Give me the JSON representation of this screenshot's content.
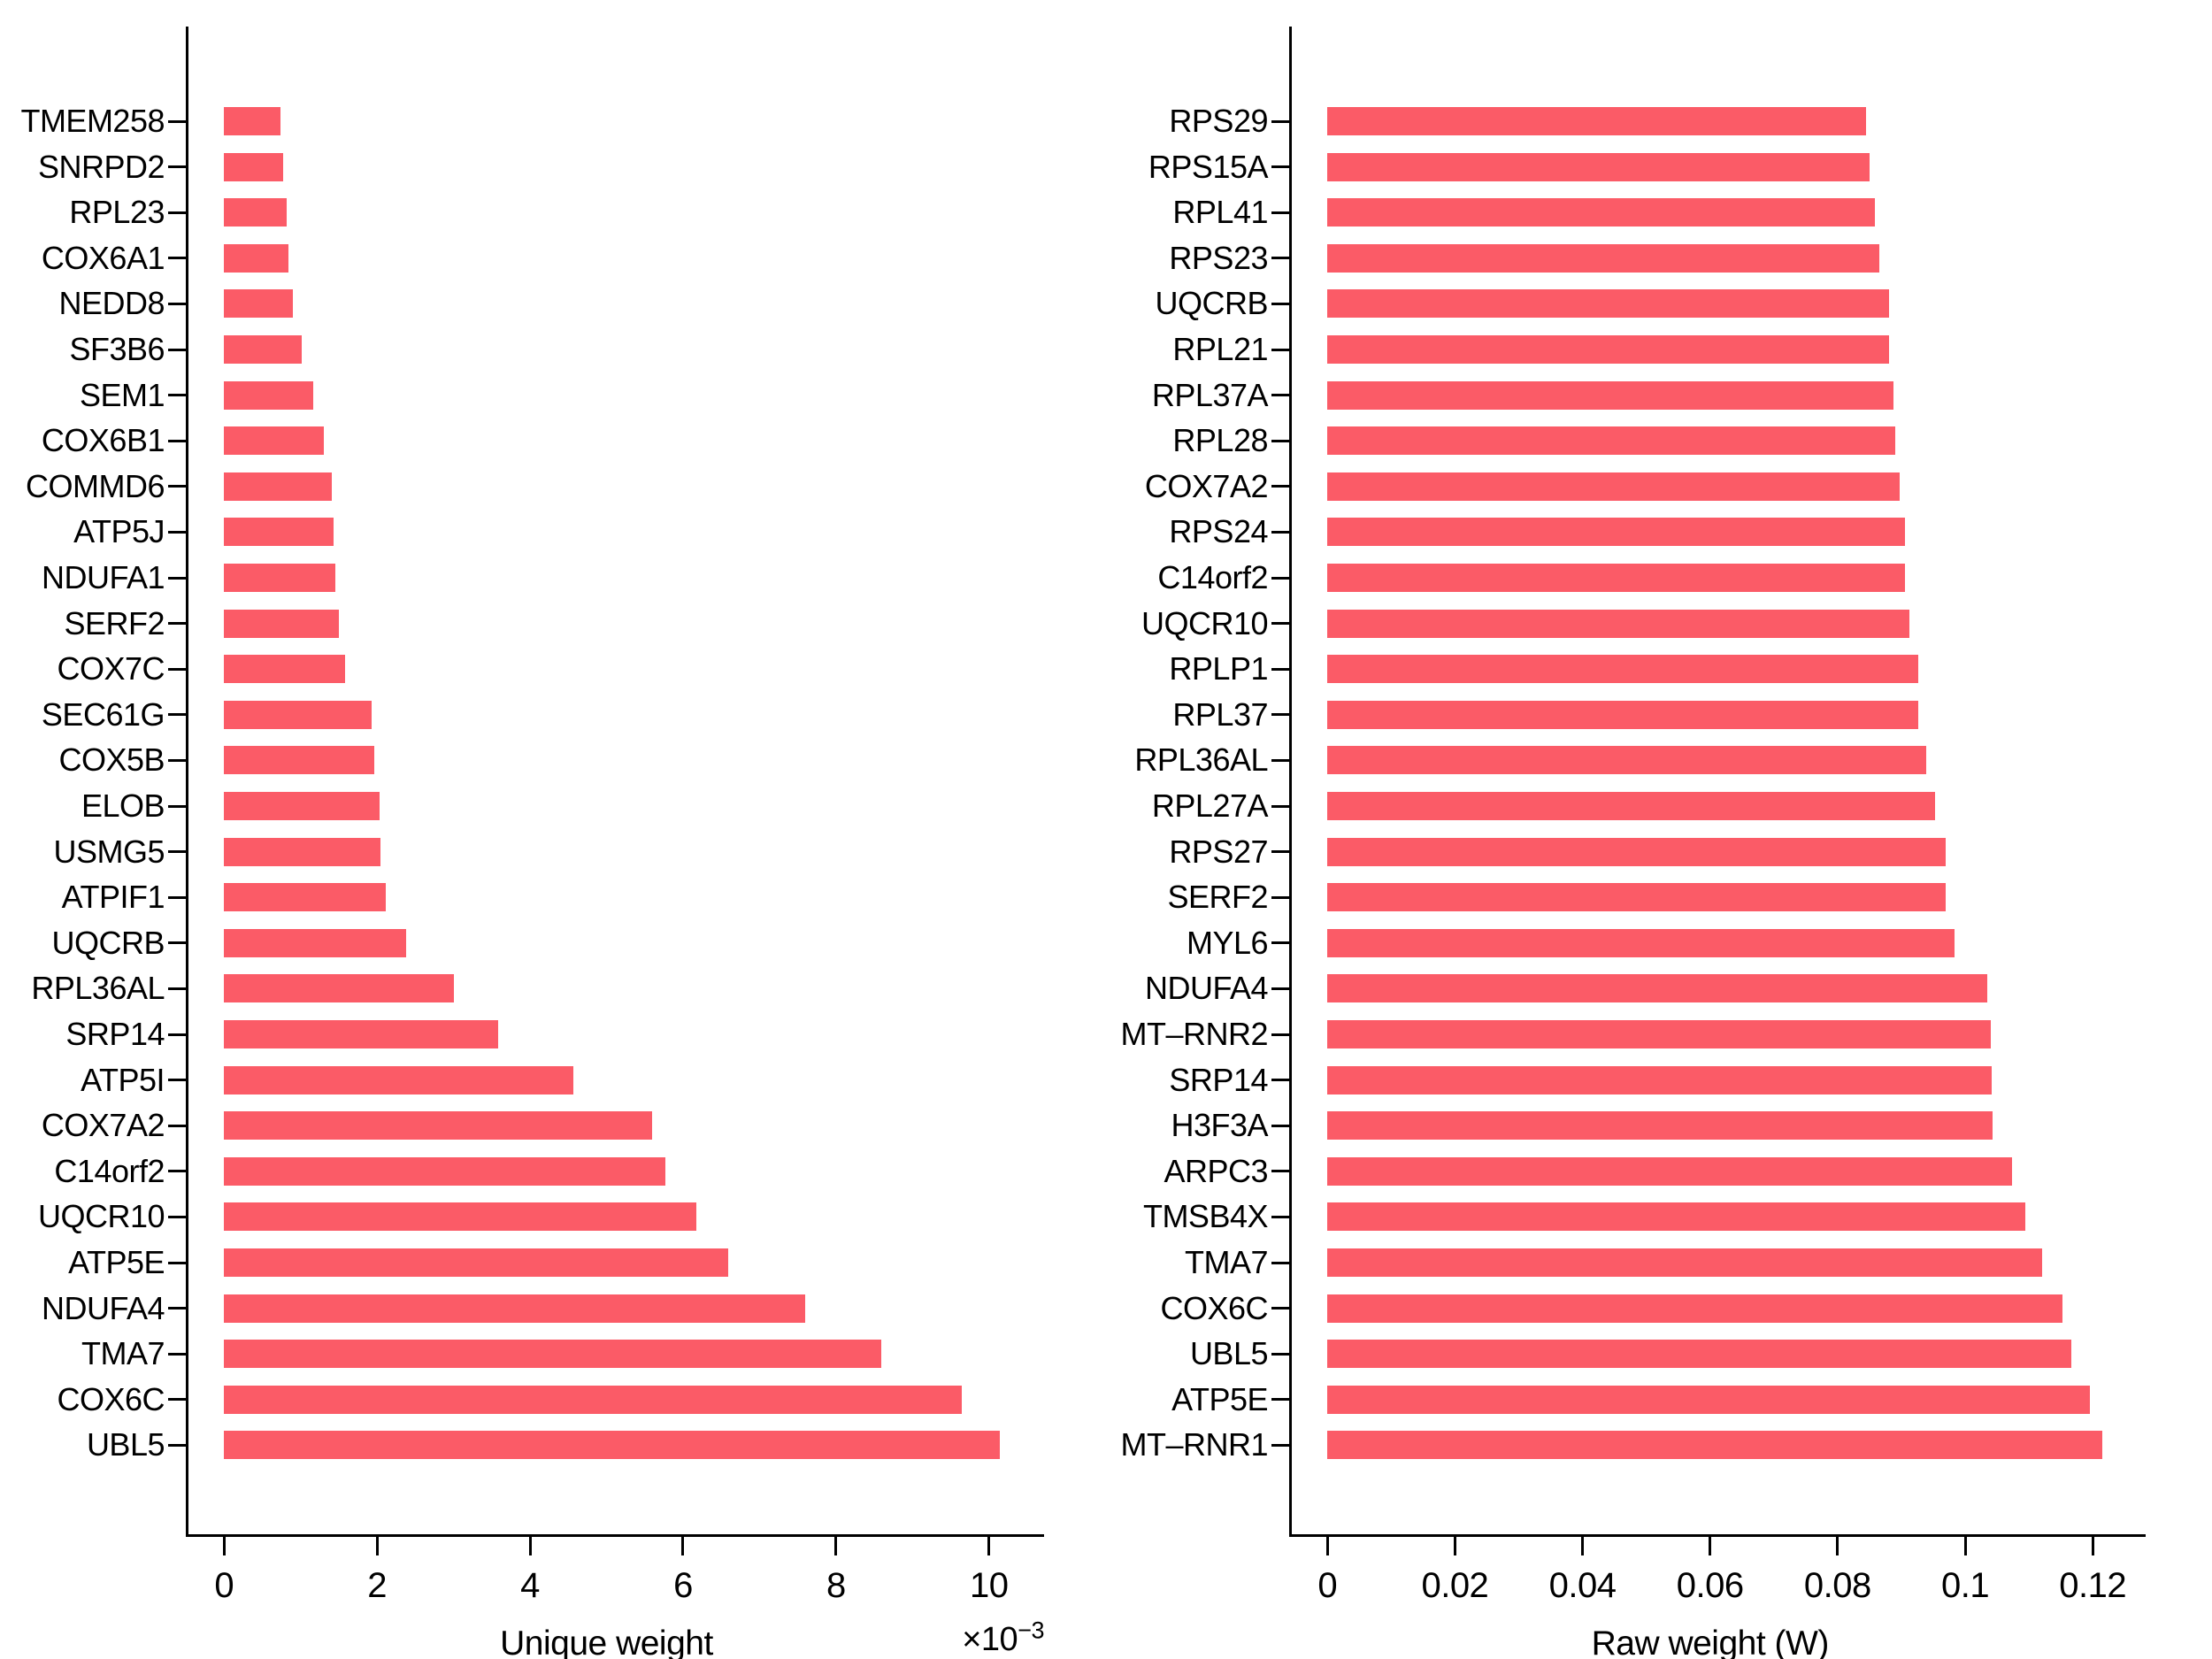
{
  "figure": {
    "background": "#ffffff",
    "bar_color": "#fb5b67",
    "axis_color": "#000000",
    "text_color": "#000000"
  },
  "chart_data": [
    {
      "type": "bar",
      "orientation": "horizontal",
      "title": "",
      "xlabel": "Unique weight",
      "offset_base": "×10",
      "offset_exp": "−3",
      "value_scale": "1e-3",
      "grid": false,
      "legend": null,
      "xlim": [
        -0.5,
        10.72
      ],
      "xticks": [
        0,
        2,
        4,
        6,
        8,
        10
      ],
      "xtick_labels": [
        "0",
        "2",
        "4",
        "6",
        "8",
        "10"
      ],
      "categories": [
        "TMEM258",
        "SNRPD2",
        "RPL23",
        "COX6A1",
        "NEDD8",
        "SF3B6",
        "SEM1",
        "COX6B1",
        "COMMD6",
        "ATP5J",
        "NDUFA1",
        "SERF2",
        "COX7C",
        "SEC61G",
        "COX5B",
        "ELOB",
        "USMG5",
        "ATPIF1",
        "UQCRB",
        "RPL36AL",
        "SRP14",
        "ATP5I",
        "COX7A2",
        "C14orf2",
        "UQCR10",
        "ATP5E",
        "NDUFA4",
        "TMA7",
        "COX6C",
        "UBL5"
      ],
      "values": [
        0.74,
        0.77,
        0.82,
        0.84,
        0.9,
        1.01,
        1.17,
        1.31,
        1.41,
        1.43,
        1.45,
        1.5,
        1.58,
        1.93,
        1.96,
        2.03,
        2.05,
        2.11,
        2.38,
        3.0,
        3.58,
        4.57,
        5.6,
        5.77,
        6.18,
        6.59,
        7.6,
        8.59,
        9.65,
        10.14
      ]
    },
    {
      "type": "bar",
      "orientation": "horizontal",
      "title": "",
      "xlabel": "Raw weight (W)",
      "offset_base": "",
      "offset_exp": "",
      "value_scale": "1",
      "grid": false,
      "legend": null,
      "xlim": [
        -0.006,
        0.1283
      ],
      "xticks": [
        0,
        0.02,
        0.04,
        0.06,
        0.08,
        0.1,
        0.12
      ],
      "xtick_labels": [
        "0",
        "0.02",
        "0.04",
        "0.06",
        "0.08",
        "0.1",
        "0.12"
      ],
      "categories": [
        "RPS29",
        "RPS15A",
        "RPL41",
        "RPS23",
        "UQCRB",
        "RPL21",
        "RPL37A",
        "RPL28",
        "COX7A2",
        "RPS24",
        "C14orf2",
        "UQCR10",
        "RPLP1",
        "RPL37",
        "RPL36AL",
        "RPL27A",
        "RPS27",
        "SERF2",
        "MYL6",
        "NDUFA4",
        "MT–RNR2",
        "SRP14",
        "H3F3A",
        "ARPC3",
        "TMSB4X",
        "TMA7",
        "COX6C",
        "UBL5",
        "ATP5E",
        "MT–RNR1"
      ],
      "values": [
        0.0844,
        0.085,
        0.0859,
        0.0866,
        0.088,
        0.0881,
        0.0887,
        0.0891,
        0.0897,
        0.0906,
        0.0906,
        0.0913,
        0.0926,
        0.0926,
        0.0939,
        0.0953,
        0.097,
        0.097,
        0.0983,
        0.1034,
        0.104,
        0.1041,
        0.1043,
        0.1073,
        0.1094,
        0.1121,
        0.1153,
        0.1167,
        0.1196,
        0.1215
      ]
    }
  ]
}
